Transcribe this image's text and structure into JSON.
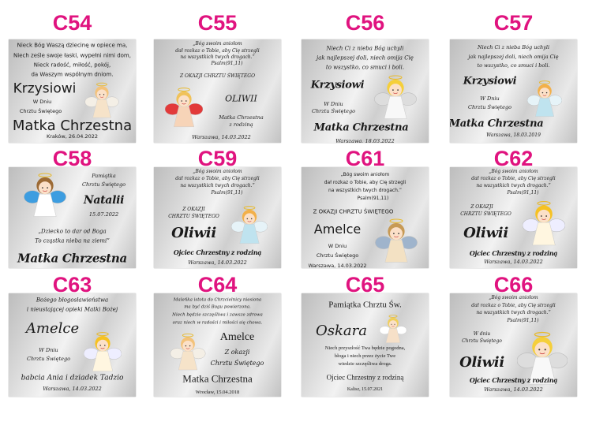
{
  "accent_color": "#e0137f",
  "plates": [
    {
      "code": "C54",
      "lines": [
        "Nieck Bóg Waszą dziecinę w opiece ma,",
        "Niech ześle swoje łaski, wypełni nimi dom,",
        "Nieck radość, miłość, pokój,",
        "da Waszym wspólnym dniom.",
        "Krzysiowi",
        "W Dniu",
        "Chrztu Świętego",
        "Matka Chrzestna",
        "Kraków, 26.04.2022"
      ]
    },
    {
      "code": "C55",
      "lines": [
        "„Bóg swoim aniołom",
        "dał rozkaz o Tobie, aby Cię strzegli",
        "na wszystkich twych drogach.”",
        "Psalm(91,11)",
        "Z OKAZJI CHRZTU ŚWIĘTEGO",
        "OLIWII",
        "Matka Chrzestna",
        "z rodziną",
        "Warszawa, 14.03.2022"
      ]
    },
    {
      "code": "C56",
      "lines": [
        "Niech Ci z nieba Bóg uchyli",
        "jak najlepszej doli, niech omija Cię",
        "to wszystko, co smuci i boli.",
        "Krzysiowi",
        "W Dniu",
        "Chrztu Świętego",
        "Matka Chrzestna",
        "Warszawa, 18.03.2022"
      ]
    },
    {
      "code": "C57",
      "lines": [
        "Niech Ci z nieba Bóg uchyli",
        "jak najlepszej doli, niech omija Cię",
        "to wszystko, co smuci i boli.",
        "Krzysiowi",
        "W Dniu",
        "Chrztu Świętego",
        "Matka Chrzestna",
        "Warszawa, 18.03.2019"
      ]
    },
    {
      "code": "C58",
      "lines": [
        "Pamiątka",
        "Chrztu Świętego",
        "Natalii",
        "15.07.2022",
        "„Dziecko to dar od Boga",
        "To cząstka nieba na ziemi”",
        "Matka Chrzestna"
      ]
    },
    {
      "code": "C59",
      "lines": [
        "„Bóg swoim aniołom",
        "dał rozkaz o Tobie, aby Cię strzegli",
        "na wszystkich twych drogach.”",
        "Psalm(91,11)",
        "Z OKAZJI",
        "CHRZTU ŚWIĘTEGO",
        "Oliwii",
        "Ojciec Chrzestny z rodziną",
        "Warszawa, 14.03.2022"
      ]
    },
    {
      "code": "C61",
      "lines": [
        "„Bóg swoim aniołom",
        "dał rozkaz o Tobie, aby Cię strzegli",
        "na wszystkich twych drogach.”",
        "Psalm(91,11)",
        "Z OKAZJI CHRZTU ŚWIĘTEGO",
        "Amelce",
        "W Dniu",
        "Chrztu Świętego",
        "Warszawa, 14.03.2022"
      ]
    },
    {
      "code": "C62",
      "lines": [
        "„Bóg swoim aniołom",
        "dał rozkaz o Tobie, aby Cię strzegli",
        "na wszystkich twych drogach.”",
        "Psalm(91,11)",
        "Z OKAZJI",
        "CHRZTU ŚWIĘTEGO",
        "Oliwii",
        "Ojciec Chrzestny z rodziną",
        "Warszawa, 14.03.2022"
      ]
    },
    {
      "code": "C63",
      "lines": [
        "Bożego błogosławieństwa",
        "i nieustającej opieki Matki Bożej",
        "Amelce",
        "W Dniu",
        "Chrztu Świętego",
        "babcia Ania i dziadek Tadzio",
        "Warszawa, 14.03.2022"
      ]
    },
    {
      "code": "C64",
      "lines": [
        "Maleńka istota do Chrzcielnicy niesiona",
        "ma być dziś Bogu powierzona.",
        "Niech będzie szczęśliwa i zawsze zdrowa",
        "oraz niech w radości i miłości się chowa.",
        "Amelce",
        "Z okazji",
        "Chrztu Świętego",
        "Matka Chrzestna",
        "Wrocław, 15.04.2018"
      ]
    },
    {
      "code": "C65",
      "lines": [
        "Pamiątka Chrztu Św.",
        "Oskara",
        "Niech przyszłość Twa będzie pogodna,",
        "błoga i niech przez życie Twe",
        "wiedzie szczęśliwa droga.",
        "Ojciec Chrzestny z rodziną",
        "Kalisz, 15.07.2021"
      ]
    },
    {
      "code": "C66",
      "lines": [
        "„Bóg swoim aniołom",
        "dał rozkaz o Tobie, aby Cię strzegli",
        "na wszystkich twych drogach.”",
        "Psalm(91,11)",
        "W dniu",
        "Chrztu Świętego",
        "Oliwii",
        "Ojciec Chrzestny z rodziną",
        "Warszawa, 14.03.2022"
      ]
    }
  ]
}
